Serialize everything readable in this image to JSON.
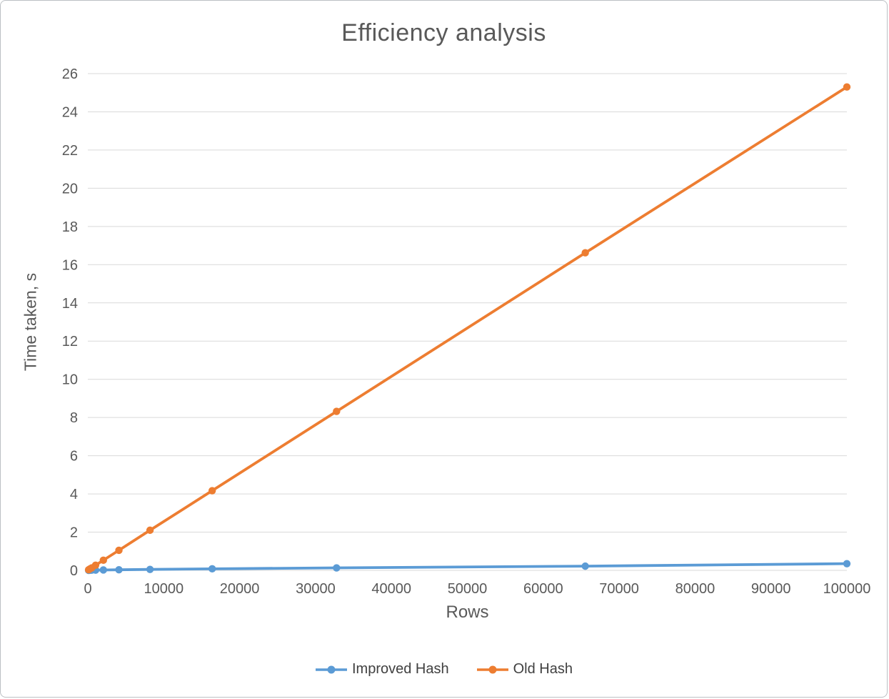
{
  "chart_data": {
    "type": "line",
    "title": "Efficiency analysis",
    "xlabel": "Rows",
    "ylabel": "Time taken, s",
    "xlim": [
      0,
      100000
    ],
    "ylim": [
      0,
      26
    ],
    "x_ticks": [
      0,
      10000,
      20000,
      30000,
      40000,
      50000,
      60000,
      70000,
      80000,
      90000,
      100000
    ],
    "y_ticks": [
      0,
      2,
      4,
      6,
      8,
      10,
      12,
      14,
      16,
      18,
      20,
      22,
      24,
      26
    ],
    "grid": "horizontal",
    "legend_position": "bottom",
    "colors": {
      "grid": "#d9d9d9",
      "axis_text": "#595959",
      "title": "#595959",
      "legend_text": "#404040",
      "border": "#bcc0c4"
    },
    "series": [
      {
        "name": "Improved Hash",
        "color": "#5b9bd5",
        "x": [
          100,
          256,
          512,
          1024,
          2048,
          4096,
          8192,
          16384,
          32768,
          65536,
          100000
        ],
        "y": [
          0.0,
          0.005,
          0.01,
          0.01,
          0.02,
          0.03,
          0.05,
          0.08,
          0.13,
          0.22,
          0.35
        ]
      },
      {
        "name": "Old Hash",
        "color": "#ed7d31",
        "x": [
          100,
          256,
          512,
          1024,
          2048,
          4096,
          8192,
          16384,
          32768,
          65536,
          100000
        ],
        "y": [
          0.03,
          0.07,
          0.13,
          0.27,
          0.53,
          1.05,
          2.1,
          4.17,
          8.32,
          16.62,
          25.3
        ]
      }
    ]
  }
}
